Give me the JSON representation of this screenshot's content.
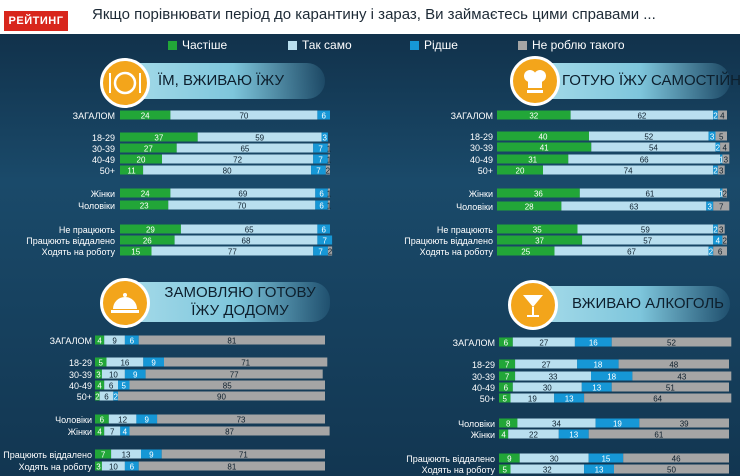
{
  "header": {
    "logo": "РЕЙТИНГ",
    "question": "Якщо порівнювати  період до карантину і зараз, Ви займаєтесь цими справами  ..."
  },
  "legend": [
    {
      "label": "Частіше",
      "color": "#22a638"
    },
    {
      "label": "Так само",
      "color": "#b9dfef"
    },
    {
      "label": "Рідше",
      "color": "#1697d6"
    },
    {
      "label": "Не роблю такого",
      "color": "#a5a5a5"
    }
  ],
  "chart_data": [
    {
      "type": "bar",
      "stacked": true,
      "orientation": "horizontal",
      "title": "ЇМ, ВЖИВАЮ ЇЖУ",
      "categories": [
        "ЗАГАЛОМ",
        "18-29",
        "30-39",
        "40-49",
        "50+",
        "Жінки",
        "Чоловіки",
        "Не працюють",
        "Працюють віддалено",
        "Ходять на роботу"
      ],
      "series": [
        {
          "name": "Частіше",
          "values": [
            24,
            37,
            27,
            20,
            11,
            24,
            23,
            29,
            26,
            15
          ]
        },
        {
          "name": "Так само",
          "values": [
            70,
            59,
            65,
            72,
            80,
            69,
            70,
            65,
            68,
            77
          ]
        },
        {
          "name": "Рідше",
          "values": [
            6,
            3,
            7,
            7,
            7,
            6,
            6,
            6,
            7,
            7
          ]
        },
        {
          "name": "Не роблю такого",
          "values": [
            0,
            0,
            1,
            1,
            2,
            1,
            1,
            0,
            0,
            2
          ]
        }
      ]
    },
    {
      "type": "bar",
      "stacked": true,
      "orientation": "horizontal",
      "title": "ГОТУЮ ЇЖУ САМОСТІЙНО",
      "categories": [
        "ЗАГАЛОМ",
        "18-29",
        "30-39",
        "40-49",
        "50+",
        "Жінки",
        "Чоловіки",
        "Не працюють",
        "Працюють віддалено",
        "Ходять на роботу"
      ],
      "series": [
        {
          "name": "Частіше",
          "values": [
            32,
            40,
            41,
            31,
            20,
            36,
            28,
            35,
            37,
            25
          ]
        },
        {
          "name": "Так само",
          "values": [
            62,
            52,
            54,
            66,
            74,
            61,
            63,
            59,
            57,
            67
          ]
        },
        {
          "name": "Рідше",
          "values": [
            2,
            3,
            2,
            1,
            2,
            1,
            3,
            2,
            4,
            2
          ]
        },
        {
          "name": "Не роблю такого",
          "values": [
            4,
            5,
            4,
            3,
            3,
            2,
            7,
            3,
            2,
            6
          ]
        }
      ]
    },
    {
      "type": "bar",
      "stacked": true,
      "orientation": "horizontal",
      "title": "ЗАМОВЛЯЮ ГОТОВУ ЇЖУ ДОДОМУ",
      "categories": [
        "ЗАГАЛОМ",
        "18-29",
        "30-39",
        "40-49",
        "50+",
        "Чоловіки",
        "Жінки",
        "Працюють віддалено",
        "Ходять на роботу"
      ],
      "series": [
        {
          "name": "Частіше",
          "values": [
            4,
            5,
            3,
            4,
            2,
            6,
            4,
            7,
            3
          ]
        },
        {
          "name": "Так само",
          "values": [
            9,
            16,
            10,
            6,
            6,
            12,
            7,
            13,
            10
          ]
        },
        {
          "name": "Рідше",
          "values": [
            6,
            9,
            9,
            5,
            2,
            9,
            4,
            9,
            6
          ]
        },
        {
          "name": "Не роблю такого",
          "values": [
            81,
            71,
            77,
            85,
            90,
            73,
            87,
            71,
            81
          ]
        }
      ]
    },
    {
      "type": "bar",
      "stacked": true,
      "orientation": "horizontal",
      "title": "ВЖИВАЮ АЛКОГОЛЬ",
      "categories": [
        "ЗАГАЛОМ",
        "18-29",
        "30-39",
        "40-49",
        "50+",
        "Чоловіки",
        "Жінки",
        "Працюють віддалено",
        "Ходять на роботу"
      ],
      "series": [
        {
          "name": "Частіше",
          "values": [
            6,
            7,
            7,
            6,
            5,
            8,
            4,
            9,
            5
          ]
        },
        {
          "name": "Так само",
          "values": [
            27,
            27,
            33,
            30,
            19,
            34,
            22,
            30,
            32
          ]
        },
        {
          "name": "Рідше",
          "values": [
            16,
            18,
            18,
            13,
            13,
            19,
            13,
            15,
            13
          ]
        },
        {
          "name": "Не роблю такого",
          "values": [
            52,
            48,
            43,
            51,
            64,
            39,
            61,
            46,
            50
          ]
        }
      ]
    }
  ]
}
